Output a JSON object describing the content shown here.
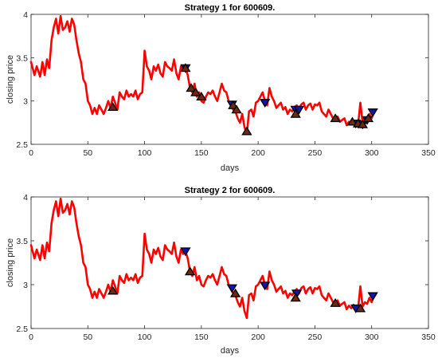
{
  "chart_data": [
    {
      "type": "line",
      "title": "Strategy 1 for 600609.",
      "xlabel": "days",
      "ylabel": "closing price",
      "xlim": [
        0,
        350
      ],
      "ylim": [
        2.5,
        4
      ],
      "xticks": [
        0,
        50,
        100,
        150,
        200,
        250,
        300,
        350
      ],
      "yticks": [
        2.5,
        3,
        3.5,
        4
      ],
      "grid": false,
      "legend": "none",
      "series": [
        {
          "role": "closing price",
          "color": "#ff0000",
          "x": [
            0,
            3,
            5,
            8,
            10,
            12,
            14,
            16,
            18,
            20,
            22,
            24,
            26,
            28,
            30,
            32,
            34,
            36,
            38,
            40,
            42,
            44,
            46,
            48,
            50,
            52,
            54,
            56,
            58,
            60,
            62,
            64,
            66,
            68,
            70,
            72,
            74,
            76,
            78,
            80,
            82,
            84,
            86,
            88,
            90,
            92,
            94,
            96,
            98,
            100,
            102,
            104,
            106,
            108,
            110,
            112,
            114,
            116,
            118,
            120,
            122,
            124,
            126,
            128,
            130,
            132,
            134,
            136,
            138,
            140,
            142,
            144,
            146,
            148,
            150,
            152,
            154,
            156,
            158,
            160,
            162,
            164,
            166,
            168,
            170,
            172,
            174,
            176,
            178,
            180,
            182,
            184,
            186,
            188,
            190,
            192,
            194,
            196,
            198,
            200,
            202,
            204,
            206,
            208,
            210,
            212,
            214,
            216,
            218,
            220,
            222,
            224,
            226,
            228,
            230,
            232,
            234,
            236,
            238,
            240,
            242,
            244,
            246,
            248,
            250,
            252,
            254,
            256,
            258,
            260,
            262,
            264,
            266,
            268,
            270,
            272,
            274,
            276,
            278,
            280,
            282,
            284,
            286,
            288,
            290,
            292,
            294,
            296,
            298,
            300,
            302
          ],
          "y": [
            3.45,
            3.3,
            3.4,
            3.28,
            3.45,
            3.3,
            3.48,
            3.38,
            3.7,
            3.85,
            3.95,
            3.78,
            3.98,
            3.82,
            3.85,
            3.92,
            3.8,
            3.95,
            3.88,
            3.7,
            3.55,
            3.45,
            3.25,
            3.2,
            3.0,
            2.95,
            2.85,
            2.92,
            2.85,
            2.95,
            2.9,
            2.85,
            2.92,
            3.0,
            2.92,
            3.05,
            2.98,
            2.9,
            3.1,
            3.05,
            3.02,
            3.12,
            3.05,
            3.08,
            3.05,
            3.12,
            3.02,
            3.08,
            3.1,
            3.58,
            3.4,
            3.35,
            3.25,
            3.4,
            3.35,
            3.42,
            3.32,
            3.28,
            3.45,
            3.4,
            3.38,
            3.35,
            3.48,
            3.32,
            3.25,
            3.4,
            3.35,
            3.38,
            3.3,
            3.15,
            3.1,
            3.2,
            3.05,
            3.1,
            3.0,
            2.98,
            3.05,
            3.1,
            3.08,
            3.12,
            3.05,
            3.0,
            3.1,
            3.2,
            3.12,
            3.1,
            3.0,
            2.95,
            2.9,
            2.88,
            2.8,
            2.75,
            2.85,
            2.7,
            2.62,
            2.88,
            2.9,
            2.82,
            2.98,
            3.0,
            3.05,
            3.1,
            3.0,
            2.95,
            3.15,
            3.05,
            3.0,
            2.92,
            2.95,
            2.98,
            2.9,
            2.93,
            2.85,
            2.9,
            2.88,
            2.92,
            2.95,
            2.9,
            2.96,
            2.98,
            2.9,
            2.95,
            2.97,
            2.9,
            2.96,
            2.95,
            2.98,
            2.88,
            2.85,
            2.82,
            2.9,
            2.85,
            2.8,
            2.78,
            2.82,
            2.76,
            2.78,
            2.8,
            2.72,
            2.76,
            2.73,
            2.77,
            2.74,
            2.72,
            2.98,
            2.75,
            2.8,
            2.78,
            2.85,
            2.8,
            2.88
          ]
        }
      ],
      "markers": {
        "buy": {
          "shape": "triangle-up",
          "color": "#6b2a12",
          "x": [
            72,
            136,
            141,
            145,
            150,
            178,
            181,
            190,
            233,
            268,
            283,
            288,
            292,
            297
          ],
          "y": [
            2.93,
            3.38,
            3.15,
            3.1,
            3.05,
            2.95,
            2.9,
            2.65,
            2.85,
            2.8,
            2.76,
            2.74,
            2.73,
            2.8
          ]
        },
        "sell": {
          "shape": "triangle-down",
          "color": "#1414aa",
          "x": [
            136,
            177,
            206,
            233,
            236,
            286,
            292,
            296,
            301
          ],
          "y": [
            3.38,
            2.96,
            2.98,
            2.9,
            2.9,
            2.74,
            2.73,
            2.78,
            2.87
          ]
        }
      }
    },
    {
      "type": "line",
      "title": "Strategy 2 for 600609.",
      "xlabel": "days",
      "ylabel": "closing price",
      "xlim": [
        0,
        350
      ],
      "ylim": [
        2.5,
        4
      ],
      "xticks": [
        0,
        50,
        100,
        150,
        200,
        250,
        300,
        350
      ],
      "yticks": [
        2.5,
        3,
        3.5,
        4
      ],
      "grid": false,
      "legend": "none",
      "series": [
        {
          "role": "closing price",
          "color": "#ff0000",
          "x": [
            0,
            3,
            5,
            8,
            10,
            12,
            14,
            16,
            18,
            20,
            22,
            24,
            26,
            28,
            30,
            32,
            34,
            36,
            38,
            40,
            42,
            44,
            46,
            48,
            50,
            52,
            54,
            56,
            58,
            60,
            62,
            64,
            66,
            68,
            70,
            72,
            74,
            76,
            78,
            80,
            82,
            84,
            86,
            88,
            90,
            92,
            94,
            96,
            98,
            100,
            102,
            104,
            106,
            108,
            110,
            112,
            114,
            116,
            118,
            120,
            122,
            124,
            126,
            128,
            130,
            132,
            134,
            136,
            138,
            140,
            142,
            144,
            146,
            148,
            150,
            152,
            154,
            156,
            158,
            160,
            162,
            164,
            166,
            168,
            170,
            172,
            174,
            176,
            178,
            180,
            182,
            184,
            186,
            188,
            190,
            192,
            194,
            196,
            198,
            200,
            202,
            204,
            206,
            208,
            210,
            212,
            214,
            216,
            218,
            220,
            222,
            224,
            226,
            228,
            230,
            232,
            234,
            236,
            238,
            240,
            242,
            244,
            246,
            248,
            250,
            252,
            254,
            256,
            258,
            260,
            262,
            264,
            266,
            268,
            270,
            272,
            274,
            276,
            278,
            280,
            282,
            284,
            286,
            288,
            290,
            292,
            294,
            296,
            298,
            300,
            302
          ],
          "y": [
            3.45,
            3.3,
            3.4,
            3.28,
            3.45,
            3.3,
            3.48,
            3.38,
            3.7,
            3.85,
            3.95,
            3.78,
            3.98,
            3.82,
            3.85,
            3.92,
            3.8,
            3.95,
            3.88,
            3.7,
            3.55,
            3.45,
            3.25,
            3.2,
            3.0,
            2.95,
            2.85,
            2.92,
            2.85,
            2.95,
            2.9,
            2.85,
            2.92,
            3.0,
            2.92,
            3.05,
            2.98,
            2.9,
            3.1,
            3.05,
            3.02,
            3.12,
            3.05,
            3.08,
            3.05,
            3.12,
            3.02,
            3.08,
            3.1,
            3.58,
            3.4,
            3.35,
            3.25,
            3.4,
            3.35,
            3.42,
            3.32,
            3.28,
            3.45,
            3.4,
            3.38,
            3.35,
            3.48,
            3.32,
            3.25,
            3.4,
            3.35,
            3.38,
            3.3,
            3.15,
            3.1,
            3.2,
            3.05,
            3.1,
            3.0,
            2.98,
            3.05,
            3.1,
            3.08,
            3.12,
            3.05,
            3.0,
            3.1,
            3.2,
            3.12,
            3.1,
            3.0,
            2.95,
            2.9,
            2.88,
            2.8,
            2.75,
            2.85,
            2.7,
            2.62,
            2.88,
            2.9,
            2.82,
            2.98,
            3.0,
            3.05,
            3.1,
            3.0,
            2.95,
            3.15,
            3.05,
            3.0,
            2.92,
            2.95,
            2.98,
            2.9,
            2.93,
            2.85,
            2.9,
            2.88,
            2.92,
            2.95,
            2.9,
            2.96,
            2.98,
            2.9,
            2.95,
            2.97,
            2.9,
            2.96,
            2.95,
            2.98,
            2.88,
            2.85,
            2.82,
            2.9,
            2.85,
            2.8,
            2.78,
            2.82,
            2.76,
            2.78,
            2.8,
            2.72,
            2.76,
            2.73,
            2.77,
            2.74,
            2.72,
            2.98,
            2.75,
            2.8,
            2.78,
            2.85,
            2.8,
            2.88
          ]
        }
      ],
      "markers": {
        "buy": {
          "shape": "triangle-up",
          "color": "#6b2a12",
          "x": [
            72,
            140,
            180,
            233,
            268,
            290
          ],
          "y": [
            2.93,
            3.15,
            2.9,
            2.85,
            2.79,
            2.73
          ]
        },
        "sell": {
          "shape": "triangle-down",
          "color": "#1414aa",
          "x": [
            136,
            177,
            206,
            234,
            286,
            301
          ],
          "y": [
            3.38,
            2.96,
            2.99,
            2.9,
            2.73,
            2.87
          ]
        }
      }
    }
  ]
}
